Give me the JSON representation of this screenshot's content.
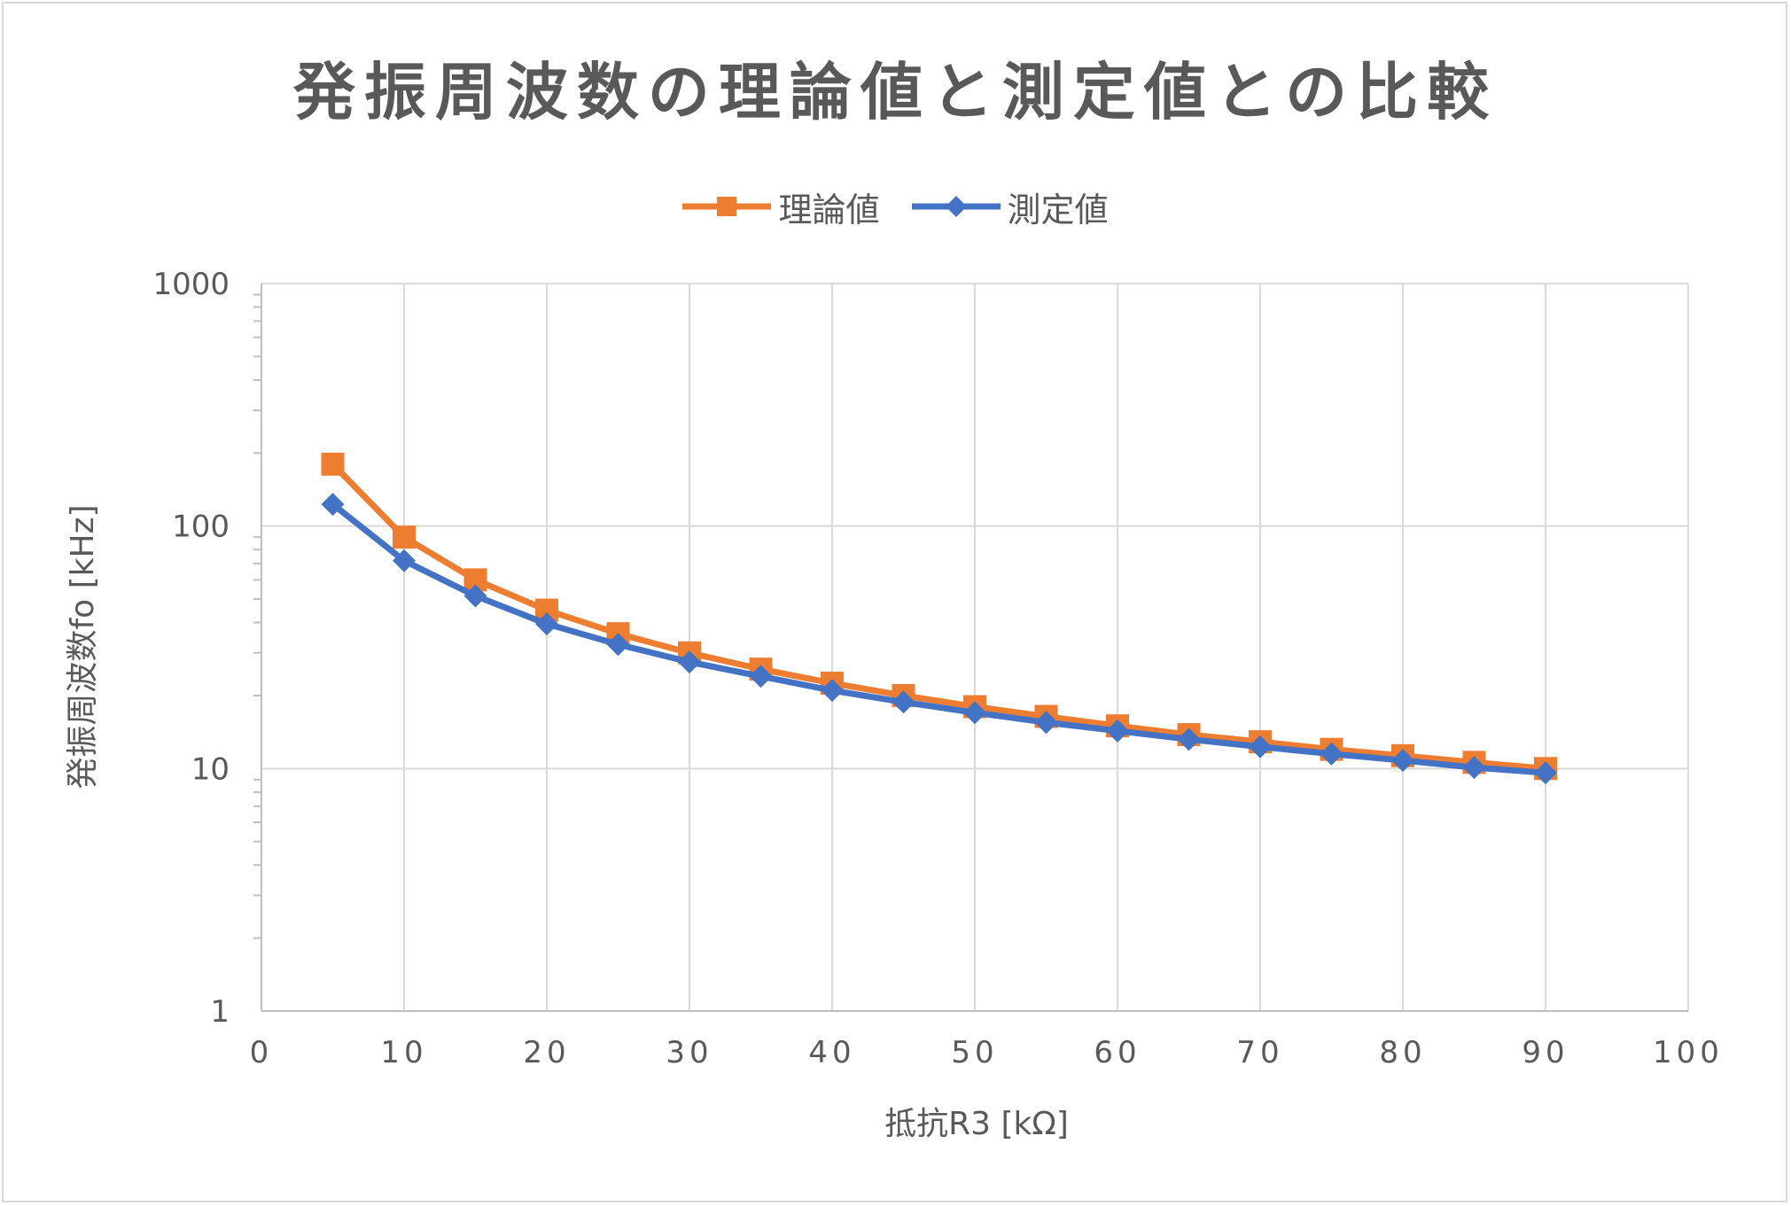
{
  "chart_data": {
    "type": "line",
    "title": "発振周波数の理論値と測定値との比較",
    "xlabel": "抵抗R3 [kΩ]",
    "ylabel": "発振周波数fo [kHz]",
    "xlim": [
      0,
      100
    ],
    "ylim": [
      1,
      1000
    ],
    "yscale": "log",
    "grid": true,
    "legend_position": "top",
    "x_ticks": [
      "0",
      "10",
      "20",
      "30",
      "40",
      "50",
      "60",
      "70",
      "80",
      "90",
      "100"
    ],
    "y_ticks": [
      "1",
      "10",
      "100",
      "1000"
    ],
    "x": [
      5,
      10,
      15,
      20,
      25,
      30,
      35,
      40,
      45,
      50,
      55,
      60,
      65,
      70,
      75,
      80,
      85,
      90
    ],
    "series": [
      {
        "name": "理論値",
        "color": "#ed7d31",
        "marker": "square",
        "values": [
          180,
          90,
          60,
          45,
          36,
          30,
          25.7,
          22.5,
          20,
          18,
          16.4,
          15,
          13.8,
          12.9,
          12,
          11.3,
          10.6,
          10
        ]
      },
      {
        "name": "測定値",
        "color": "#4472c4",
        "marker": "diamond",
        "values": [
          123,
          72,
          51.5,
          39.5,
          32.5,
          27.5,
          24,
          21,
          18.8,
          17,
          15.5,
          14.3,
          13.2,
          12.3,
          11.5,
          10.8,
          10.1,
          9.6
        ]
      }
    ]
  }
}
